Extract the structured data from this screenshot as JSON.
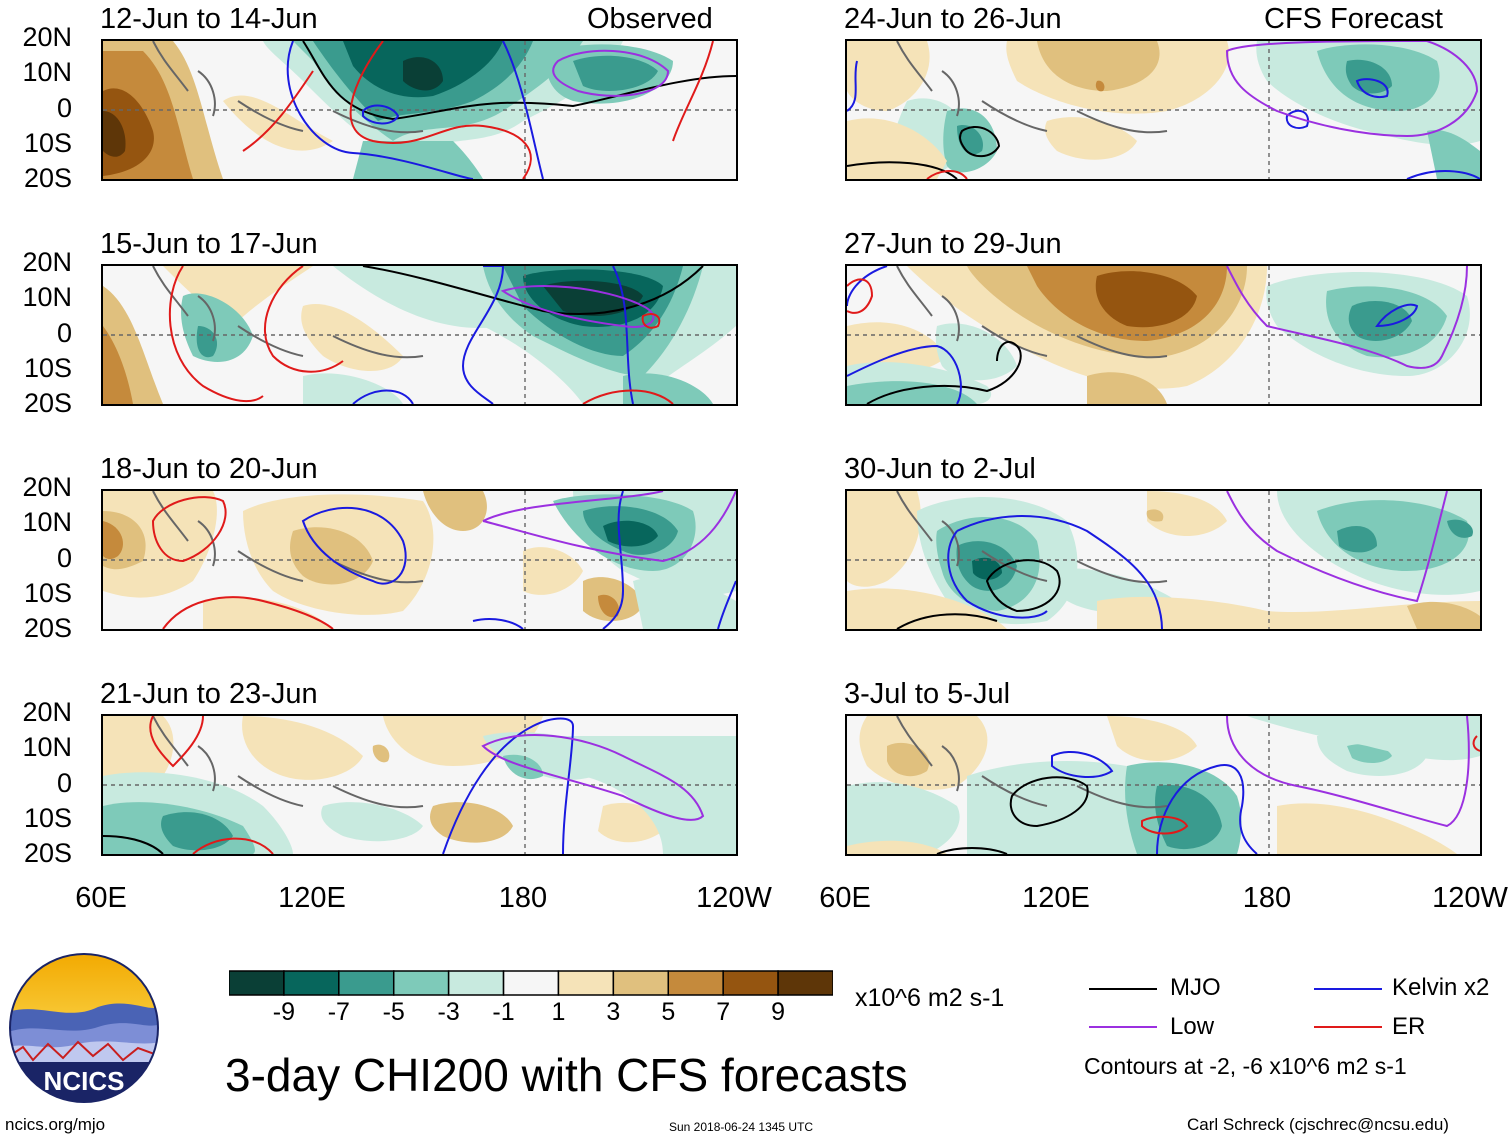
{
  "header": {
    "observed_label": "Observed",
    "forecast_label": "CFS Forecast"
  },
  "panels": {
    "left": [
      {
        "title": "12-Jun to 14-Jun"
      },
      {
        "title": "15-Jun to 17-Jun"
      },
      {
        "title": "18-Jun to 20-Jun"
      },
      {
        "title": "21-Jun to 23-Jun"
      }
    ],
    "right": [
      {
        "title": "24-Jun to 26-Jun"
      },
      {
        "title": "27-Jun to 29-Jun"
      },
      {
        "title": "30-Jun to 2-Jul"
      },
      {
        "title": "3-Jul to 5-Jul"
      }
    ]
  },
  "axes": {
    "lat_labels": [
      "20N",
      "10N",
      "0",
      "10S",
      "20S"
    ],
    "lon_labels": [
      "60E",
      "120E",
      "180",
      "120W"
    ]
  },
  "colorbar": {
    "colors": [
      "#0a3f36",
      "#07665c",
      "#3a9b8e",
      "#7ecab9",
      "#c8eadf",
      "#f6f6f6",
      "#f5e3b8",
      "#e0c07e",
      "#c58a3c",
      "#955510",
      "#5e3608"
    ],
    "ticks": [
      "-9",
      "-7",
      "-5",
      "-3",
      "-1",
      "1",
      "3",
      "5",
      "7",
      "9"
    ],
    "units": "x10^6 m2 s-1"
  },
  "title": "3-day CHI200 with CFS forecasts",
  "legend": {
    "items": [
      {
        "label": "MJO",
        "color": "#000000"
      },
      {
        "label": "Kelvin x2",
        "color": "#1a1ae0"
      },
      {
        "label": "Low",
        "color": "#9b30e0"
      },
      {
        "label": "ER",
        "color": "#e01a1a"
      }
    ],
    "contours_note": "Contours at -2, -6 x10^6 m2 s-1"
  },
  "footer": {
    "logo_text": "NCICS",
    "url": "ncics.org/mjo",
    "timestamp": "Sun 2018-06-24 1345 UTC",
    "credit": "Carl Schreck (cjschrec@ncsu.edu)"
  }
}
